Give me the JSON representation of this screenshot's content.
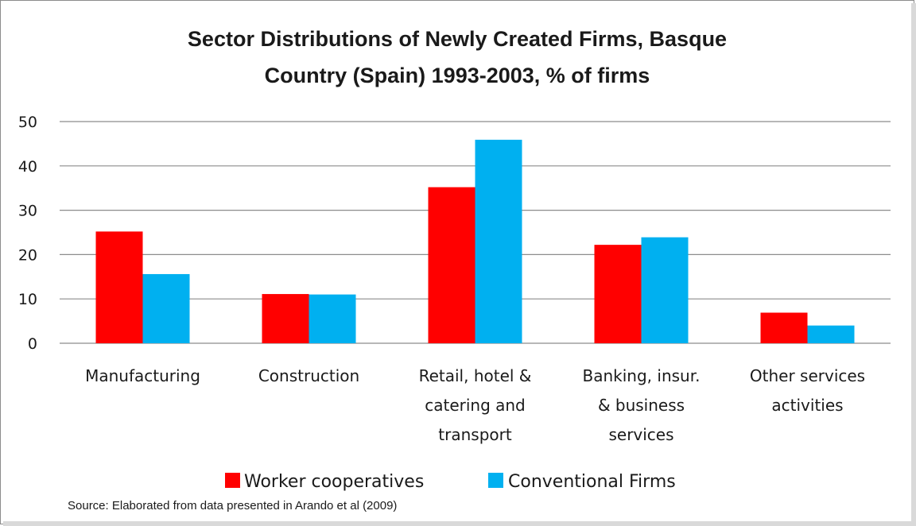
{
  "chart_data": {
    "type": "bar",
    "title": [
      "Sector Distributions of Newly Created Firms, Basque",
      "Country (Spain)  1993-2003, % of firms"
    ],
    "categories": [
      [
        "Manufacturing"
      ],
      [
        "Construction"
      ],
      [
        "Retail, hotel &",
        "catering and",
        "transport"
      ],
      [
        "Banking, insur.",
        "& business",
        "services"
      ],
      [
        "Other services",
        "activities"
      ]
    ],
    "series": [
      {
        "name": "Worker cooperatives",
        "color": "#ff0000",
        "values": [
          25.2,
          11.1,
          35.2,
          22.2,
          6.9
        ]
      },
      {
        "name": "Conventional Firms",
        "color": "#00b0f0",
        "values": [
          15.6,
          11.0,
          45.9,
          23.9,
          4.0
        ]
      }
    ],
    "ylim": [
      0,
      50
    ],
    "yticks": [
      "0",
      "10",
      "20",
      "30",
      "40",
      "50"
    ],
    "xlabel": "",
    "ylabel": "",
    "grid": true,
    "legend_position": "bottom",
    "source_note": "Source: Elaborated from data presented in Arando et al (2009)"
  }
}
